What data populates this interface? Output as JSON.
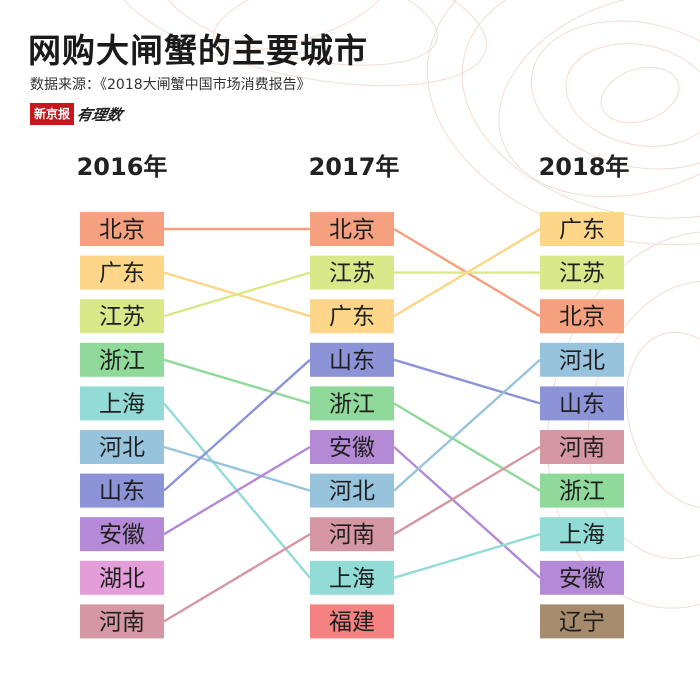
{
  "title": "网购大闸蟹的主要城市",
  "source": "数据来源：《2018大闸蟹中国市场消费报告》",
  "brand": {
    "box": "新京报",
    "script": "有理数"
  },
  "chart_data": {
    "type": "bump",
    "years": [
      "2016年",
      "2017年",
      "2018年"
    ],
    "rankings": [
      [
        "北京",
        "广东",
        "江苏",
        "浙江",
        "上海",
        "河北",
        "山东",
        "安徽",
        "湖北",
        "河南"
      ],
      [
        "北京",
        "江苏",
        "广东",
        "山东",
        "浙江",
        "安徽",
        "河北",
        "河南",
        "上海",
        "福建"
      ],
      [
        "广东",
        "江苏",
        "北京",
        "河北",
        "山东",
        "河南",
        "浙江",
        "上海",
        "安徽",
        "辽宁"
      ]
    ],
    "colors": {
      "北京": "#f5a07e",
      "广东": "#fdd689",
      "江苏": "#d9e98a",
      "浙江": "#8fd99a",
      "上海": "#93dbd6",
      "河北": "#98c3dc",
      "山东": "#8c93d6",
      "安徽": "#b48ad6",
      "湖北": "#e39dd8",
      "河南": "#d597a3",
      "福建": "#f48280",
      "辽宁": "#a68b6c"
    }
  }
}
